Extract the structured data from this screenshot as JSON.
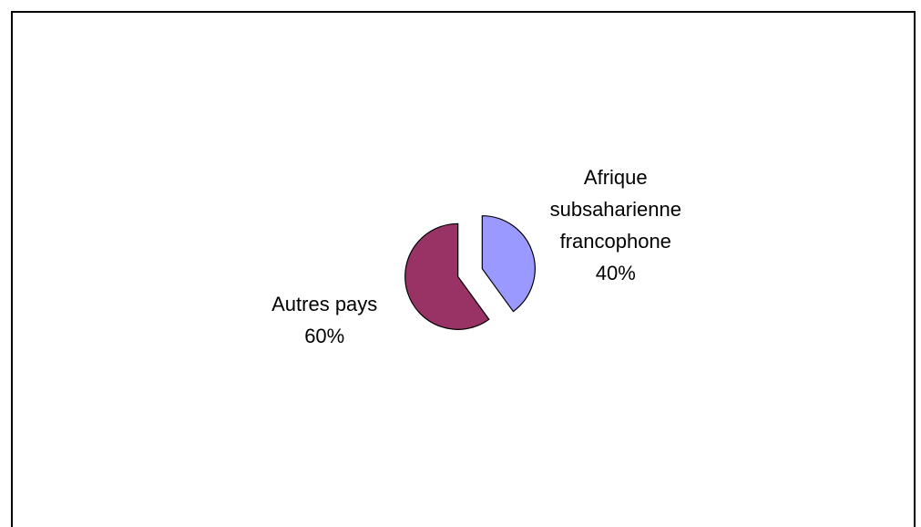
{
  "chart_data": {
    "type": "pie",
    "categories": [
      "Afrique subsaharienne francophone",
      "Autres pays"
    ],
    "values": [
      40,
      60
    ],
    "value_labels": [
      "40%",
      "60%"
    ],
    "colors": [
      "#9999ff",
      "#993366"
    ]
  }
}
